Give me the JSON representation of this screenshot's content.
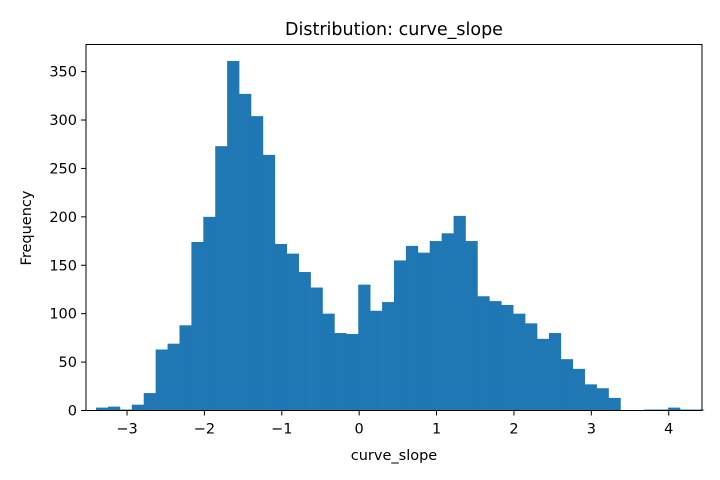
{
  "chart_data": {
    "type": "bar",
    "histogram": true,
    "title": "Distribution: curve_slope",
    "xlabel": "curve_slope",
    "ylabel": "Frequency",
    "xlim": [
      -3.53,
      4.43
    ],
    "ylim": [
      0,
      378
    ],
    "x_ticks": [
      -3,
      -2,
      -1,
      0,
      1,
      2,
      3,
      4
    ],
    "x_tick_labels": [
      "−3",
      "−2",
      "−1",
      "0",
      "1",
      "2",
      "3",
      "4"
    ],
    "y_ticks": [
      0,
      50,
      100,
      150,
      200,
      250,
      300,
      350
    ],
    "y_tick_labels": [
      "0",
      "50",
      "100",
      "150",
      "200",
      "250",
      "300",
      "350"
    ],
    "bin_start": -3.4,
    "bin_width": 0.154,
    "values": [
      3,
      4,
      1,
      6,
      18,
      63,
      69,
      88,
      174,
      200,
      273,
      361,
      327,
      304,
      264,
      172,
      162,
      143,
      127,
      100,
      80,
      79,
      130,
      103,
      112,
      155,
      170,
      163,
      175,
      183,
      201,
      175,
      118,
      113,
      109,
      100,
      90,
      74,
      80,
      53,
      43,
      27,
      23,
      13,
      0,
      0,
      1,
      1,
      3,
      1,
      1
    ],
    "bar_color": "#1f77b4",
    "grid": false,
    "legend": "none"
  }
}
